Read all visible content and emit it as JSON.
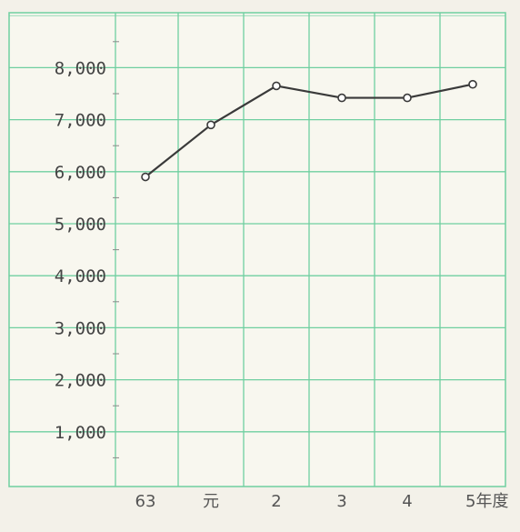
{
  "chart_data": {
    "type": "line",
    "title": "",
    "xlabel": "",
    "ylabel": "",
    "x_unit": "年度",
    "categories": [
      "63",
      "元",
      "2",
      "3",
      "4",
      "5"
    ],
    "series": [
      {
        "values": [
          5900,
          6900,
          7650,
          7420,
          7420,
          7680
        ]
      }
    ],
    "ylim": [
      0,
      9000
    ],
    "yticks": [
      1000,
      2000,
      3000,
      4000,
      5000,
      6000,
      7000,
      8000
    ],
    "ytick_labels": [
      "1,000",
      "2,000",
      "3,000",
      "4,000",
      "5,000",
      "6,000",
      "7,000",
      "8,000"
    ],
    "grid": true,
    "colors": {
      "background": "#f3f1e9",
      "plot_background": "#f8f7ef",
      "grid": "#6fcfa0",
      "line": "#3a3a3a",
      "marker_fill": "#ffffff",
      "marker_stroke": "#3a3a3a"
    }
  }
}
